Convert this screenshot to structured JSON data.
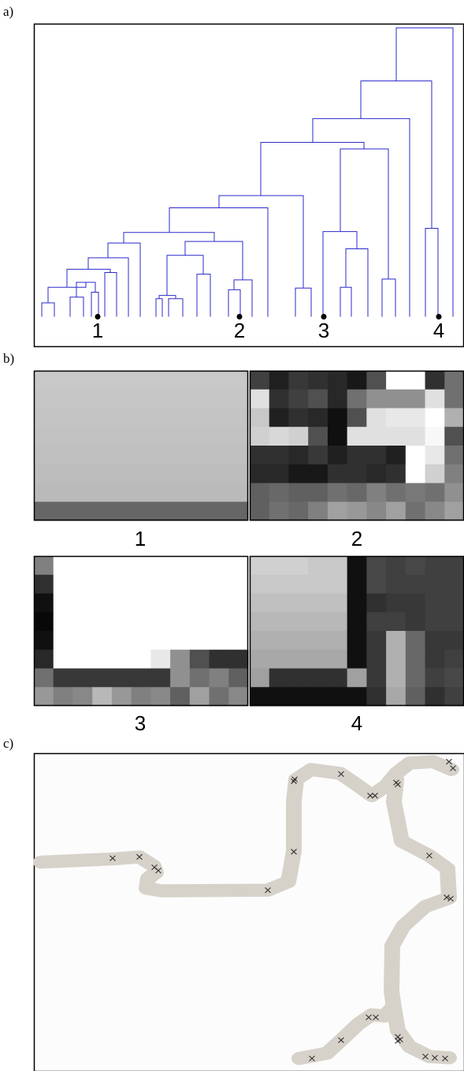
{
  "panel_labels": [
    "a)",
    "b)",
    "c)"
  ],
  "dendrogram": {
    "leaf_labels": [
      "1",
      "2",
      "3",
      "4"
    ]
  },
  "patches": {
    "labels": [
      "1",
      "2",
      "3",
      "4"
    ]
  }
}
